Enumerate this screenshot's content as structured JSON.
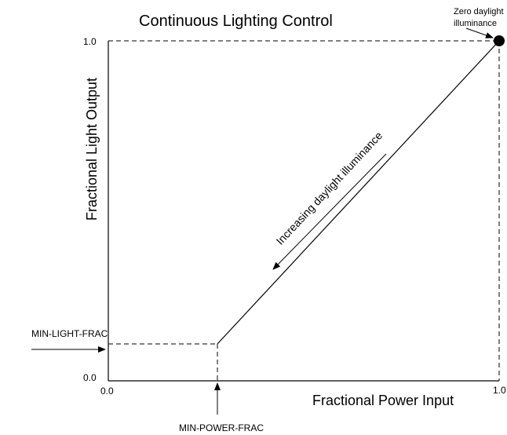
{
  "title": "Continuous Lighting Control",
  "y_axis": {
    "label": "Fractional Light Output",
    "ticks": [
      "1.0",
      "0.0"
    ]
  },
  "x_axis": {
    "label": "Fractional Power Input",
    "ticks": [
      "0.0",
      "1.0"
    ]
  },
  "annotations": {
    "zero_daylight": [
      "Zero daylight",
      "illuminance"
    ],
    "increasing": "Increasing daylight illuminance",
    "min_light": "MIN-LIGHT-FRAC",
    "min_power": "MIN-POWER-FRAC"
  }
}
